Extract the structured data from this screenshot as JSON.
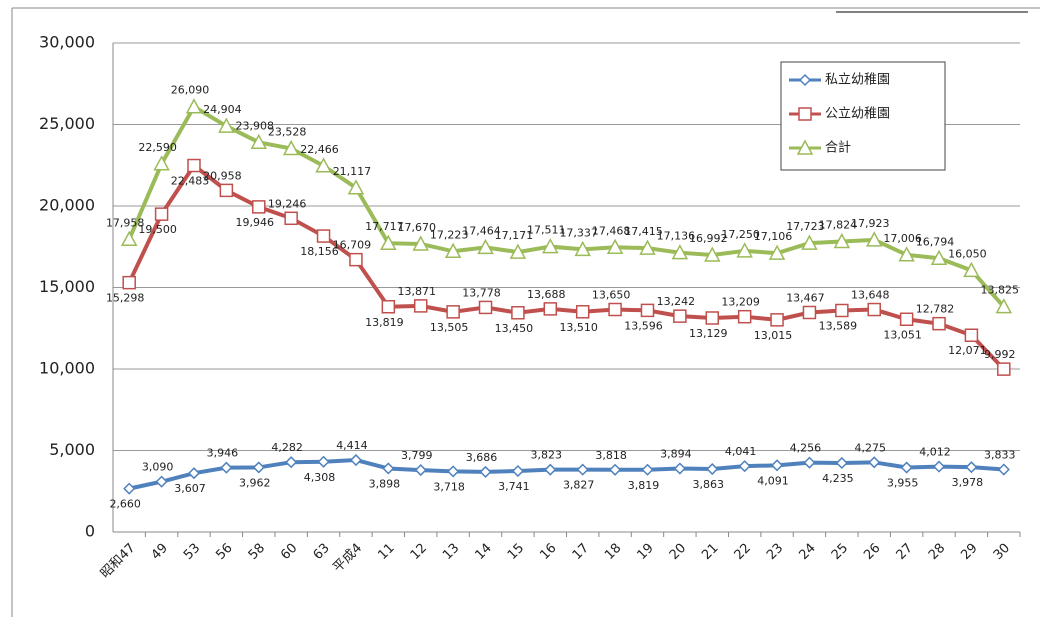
{
  "chart_data": {
    "type": "line",
    "categories": [
      "昭和47",
      "49",
      "53",
      "56",
      "58",
      "60",
      "63",
      "平成4",
      "11",
      "12",
      "13",
      "14",
      "15",
      "16",
      "17",
      "18",
      "19",
      "20",
      "21",
      "22",
      "23",
      "24",
      "25",
      "26",
      "27",
      "28",
      "29",
      "30"
    ],
    "ylim": [
      0,
      30000
    ],
    "yticks": [
      0,
      {
        "value": 5000,
        "label": "5,000"
      },
      {
        "value": 10000,
        "label": "10,000"
      },
      {
        "value": 15000,
        "label": "15,000"
      },
      {
        "value": 20000,
        "label": "20,000"
      },
      {
        "value": 25000,
        "label": "25,000"
      },
      {
        "value": 30000,
        "label": "30,000"
      }
    ],
    "grid": true,
    "legend": "upper right",
    "series": [
      {
        "name": "私立幼稚園",
        "color": "#4f81bd",
        "marker": "diamond",
        "values": [
          2660,
          3090,
          3607,
          3946,
          3962,
          4282,
          4308,
          4414,
          3898,
          3799,
          3718,
          3686,
          3741,
          3823,
          3827,
          3818,
          3819,
          3894,
          3863,
          4041,
          4091,
          4256,
          4235,
          4275,
          3955,
          4012,
          3978,
          3833
        ],
        "value_labels": [
          "2,660",
          "3,090",
          "3,607",
          "3,946",
          "3,962",
          "4,282",
          "4,308",
          "4,414",
          "3,898",
          "3,799",
          "3,718",
          "3,686",
          "3,741",
          "3,823",
          "3,827",
          "3,818",
          "3,819",
          "3,894",
          "3,863",
          "4,041",
          "4,091",
          "4,256",
          "4,235",
          "4,275",
          "3,955",
          "4,012",
          "3,978",
          "3,833"
        ]
      },
      {
        "name": "公立幼稚園",
        "color": "#c0504d",
        "marker": "square",
        "values": [
          15298,
          19500,
          22483,
          20958,
          19946,
          19246,
          18156,
          16709,
          13819,
          13871,
          13505,
          13778,
          13450,
          13688,
          13510,
          13650,
          13596,
          13242,
          13129,
          13209,
          13015,
          13467,
          13589,
          13648,
          13051,
          12782,
          12071,
          9992
        ],
        "value_labels": [
          "15,298",
          "19,500",
          "22,483",
          "20,958",
          "19,946",
          "19,246",
          "18,156",
          "16,709",
          "13,819",
          "13,871",
          "13,505",
          "13,778",
          "13,450",
          "13,688",
          "13,510",
          "13,650",
          "13,596",
          "13,242",
          "13,129",
          "13,209",
          "13,015",
          "13,467",
          "13,589",
          "13,648",
          "13,051",
          "12,782",
          "12,071",
          "9,992"
        ]
      },
      {
        "name": "合計",
        "color": "#9bbb59",
        "marker": "triangle",
        "values": [
          17958,
          22590,
          26090,
          24904,
          23908,
          23528,
          22466,
          21117,
          17717,
          17670,
          17223,
          17464,
          17171,
          17511,
          17337,
          17468,
          17415,
          17136,
          16992,
          17250,
          17106,
          17723,
          17824,
          17923,
          17006,
          16794,
          16050,
          13825
        ],
        "value_labels": [
          "17,958",
          "22,590",
          "26,090",
          "24,904",
          "23,908",
          "23,528",
          "22,466",
          "21,117",
          "17,717",
          "17,670",
          "17,223",
          "17,464",
          "17,171",
          "17,511",
          "17,337",
          "17,468",
          "17,415",
          "17,136",
          "16,992",
          "17,250",
          "17,106",
          "17,723",
          "17,824",
          "17,923",
          "17,006",
          "16,794",
          "16,050",
          "13,825"
        ]
      }
    ]
  }
}
